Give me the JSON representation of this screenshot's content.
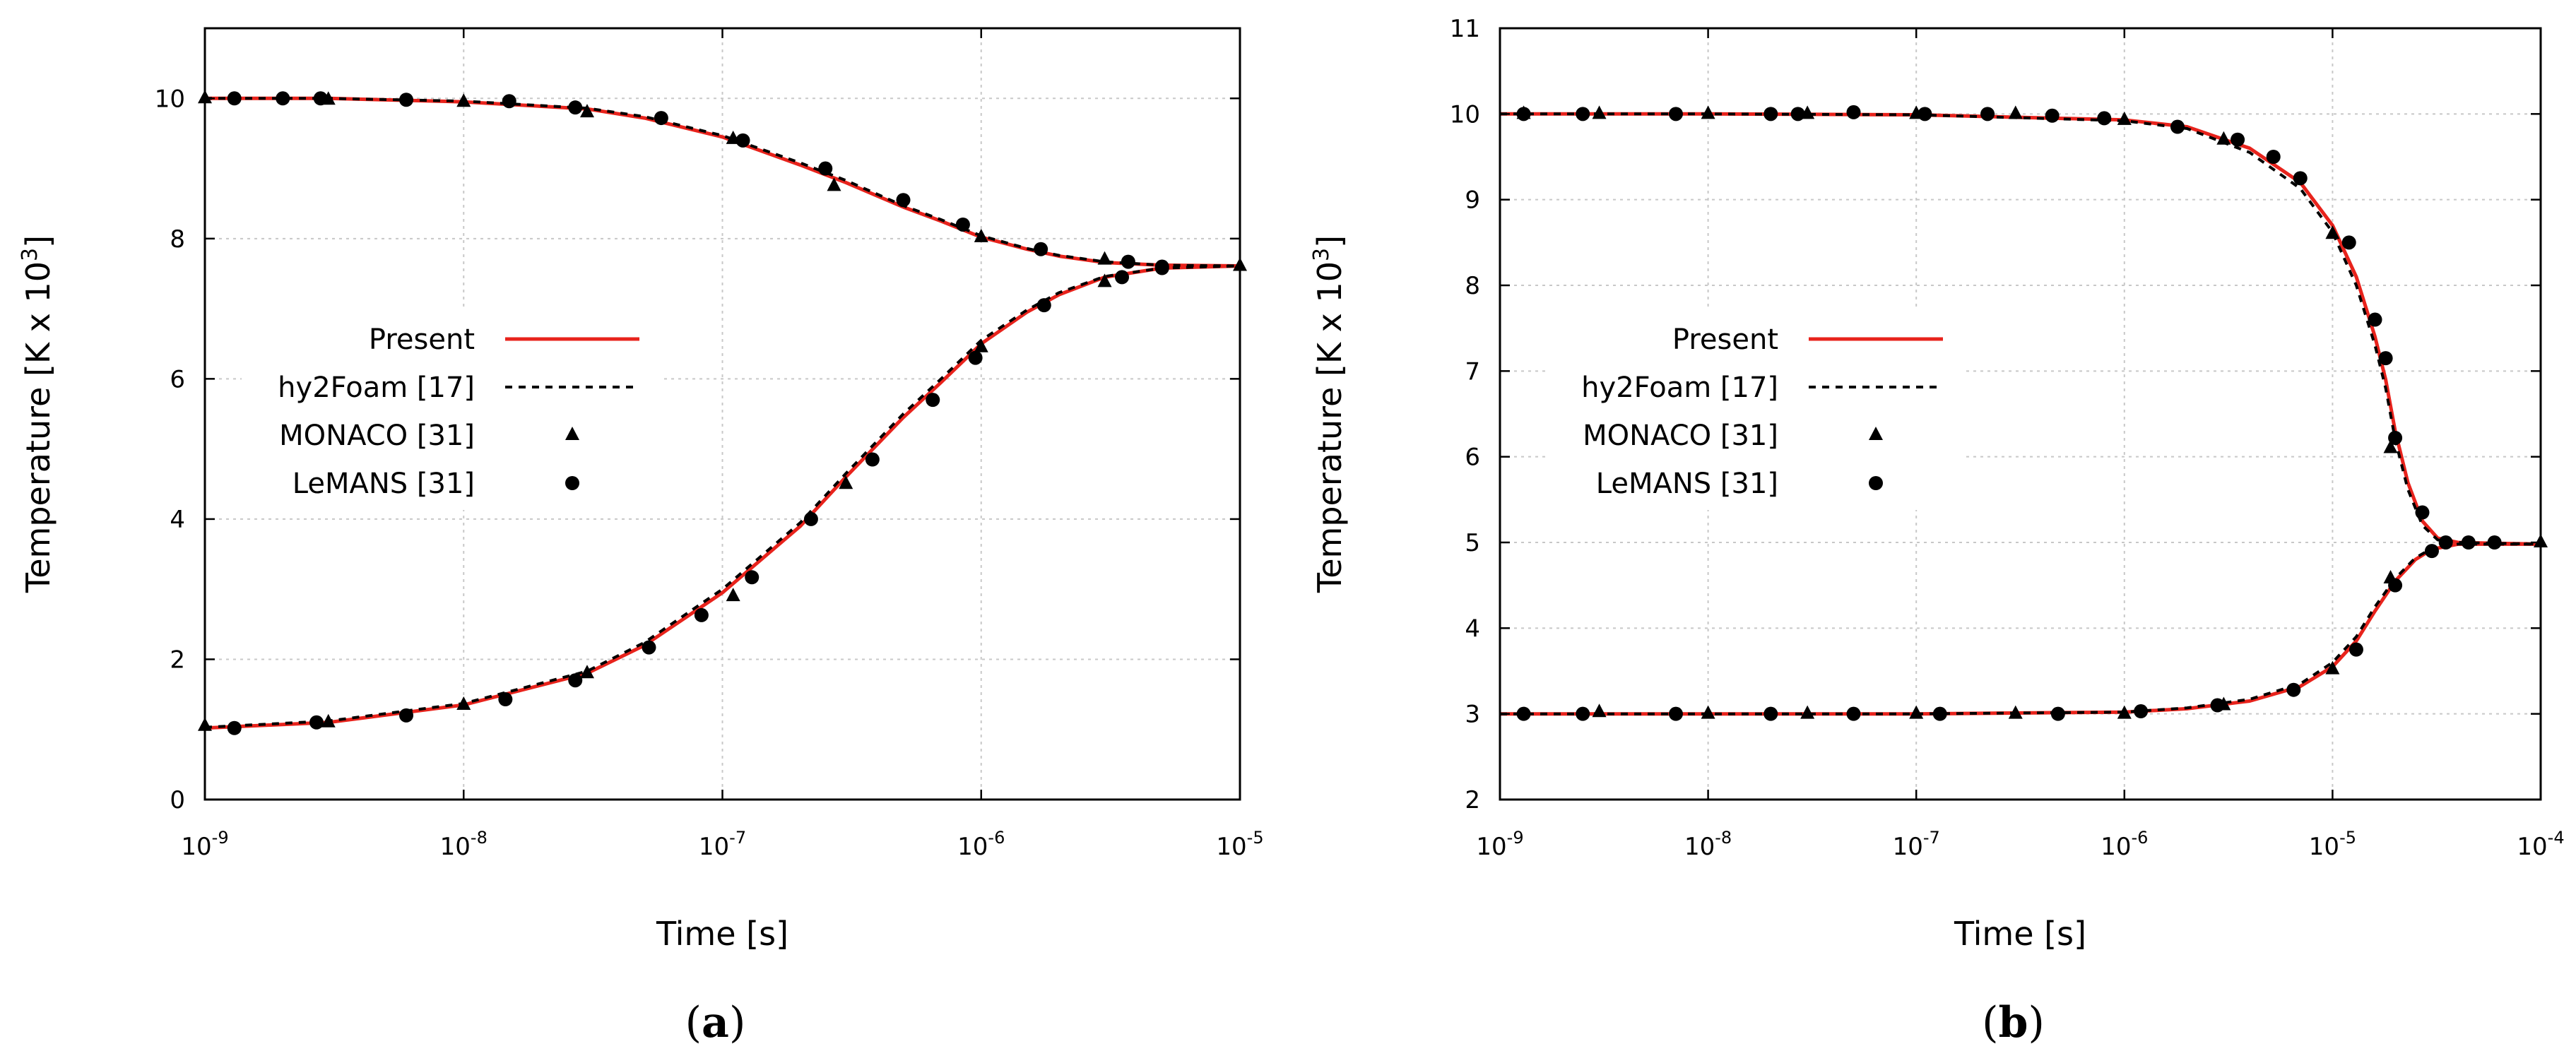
{
  "chart_data": [
    {
      "type": "line",
      "id": "a",
      "caption": "(a)",
      "xlabel": "Time [s]",
      "ylabel": "Temperature [K x 10",
      "ylabel_sup": "3",
      "ylabel_close": "]",
      "xscale": "log",
      "xlim": [
        1e-09,
        1e-05
      ],
      "ylim": [
        0,
        11
      ],
      "yticks": [
        0,
        2,
        4,
        6,
        8,
        10
      ],
      "xticks": [
        {
          "value": 1e-09,
          "base": "10",
          "exp": "-9"
        },
        {
          "value": 1e-08,
          "base": "10",
          "exp": "-8"
        },
        {
          "value": 1e-07,
          "base": "10",
          "exp": "-7"
        },
        {
          "value": 1e-06,
          "base": "10",
          "exp": "-6"
        },
        {
          "value": 1e-05,
          "base": "10",
          "exp": "-5"
        }
      ],
      "grid": true,
      "legend": [
        {
          "label": "Present",
          "style": "red-solid"
        },
        {
          "label": "hy2Foam [17]",
          "style": "black-dashed"
        },
        {
          "label": "MONACO [31]",
          "style": "triangle"
        },
        {
          "label": "LeMANS [31]",
          "style": "circle"
        }
      ],
      "legend_position": "left-center",
      "colors": {
        "present": "#e8231c",
        "hy2foam": "#000000",
        "markers": "#000000",
        "grid": "#c8c8c8"
      },
      "series": [
        {
          "name": "Present",
          "x": [
            1e-09,
            3e-09,
            1e-08,
            3e-08,
            5e-08,
            1e-07,
            2e-07,
            3e-07,
            5e-07,
            7e-07,
            1e-06,
            1.5e-06,
            2e-06,
            3e-06,
            5e-06,
            1e-05
          ],
          "values": [
            10.0,
            10.0,
            9.95,
            9.85,
            9.72,
            9.45,
            9.05,
            8.8,
            8.45,
            8.25,
            8.02,
            7.85,
            7.75,
            7.66,
            7.62,
            7.61
          ]
        },
        {
          "name": "Present",
          "x": [
            1e-09,
            3e-09,
            1e-08,
            3e-08,
            5e-08,
            1e-07,
            2e-07,
            3e-07,
            5e-07,
            7e-07,
            1e-06,
            1.5e-06,
            2e-06,
            3e-06,
            5e-06,
            1e-05
          ],
          "values": [
            1.02,
            1.1,
            1.35,
            1.8,
            2.2,
            2.95,
            3.9,
            4.6,
            5.45,
            5.95,
            6.5,
            6.95,
            7.2,
            7.45,
            7.58,
            7.61
          ]
        },
        {
          "name": "hy2Foam [17]",
          "x": [
            1e-09,
            3e-09,
            1e-08,
            3e-08,
            5e-08,
            1e-07,
            2e-07,
            3e-07,
            5e-07,
            7e-07,
            1e-06,
            1.5e-06,
            2e-06,
            3e-06,
            5e-06,
            1e-05
          ],
          "values": [
            10.0,
            10.0,
            9.96,
            9.86,
            9.74,
            9.47,
            9.08,
            8.83,
            8.47,
            8.27,
            8.04,
            7.86,
            7.76,
            7.67,
            7.62,
            7.61
          ]
        },
        {
          "name": "hy2Foam [17]",
          "x": [
            1e-09,
            3e-09,
            1e-08,
            3e-08,
            5e-08,
            1e-07,
            2e-07,
            3e-07,
            5e-07,
            7e-07,
            1e-06,
            1.5e-06,
            2e-06,
            3e-06,
            5e-06,
            1e-05
          ],
          "values": [
            1.03,
            1.12,
            1.37,
            1.83,
            2.24,
            3.0,
            3.95,
            4.65,
            5.5,
            6.0,
            6.55,
            6.98,
            7.23,
            7.46,
            7.58,
            7.61
          ]
        },
        {
          "name": "MONACO [31]",
          "x": [
            1e-09,
            3e-09,
            1e-08,
            3e-08,
            1.1e-07,
            2.7e-07,
            1e-06,
            3e-06,
            1e-05,
            1e-09,
            3e-09,
            1e-08,
            3e-08,
            1.1e-07,
            3e-07,
            1e-06,
            3e-06
          ],
          "values": [
            10.0,
            9.98,
            9.95,
            9.8,
            9.42,
            8.75,
            8.02,
            7.7,
            7.61,
            1.05,
            1.1,
            1.35,
            1.8,
            2.9,
            4.5,
            6.45,
            7.38
          ]
        },
        {
          "name": "LeMANS [31]",
          "x": [
            1.3e-09,
            2e-09,
            2.8e-09,
            6e-09,
            1.5e-08,
            2.7e-08,
            5.8e-08,
            1.2e-07,
            2.5e-07,
            5e-07,
            8.5e-07,
            1.7e-06,
            3.7e-06,
            5e-06,
            1.3e-09,
            2.7e-09,
            6e-09,
            1.45e-08,
            2.7e-08,
            5.2e-08,
            8.3e-08,
            1.3e-07,
            2.2e-07,
            3.8e-07,
            6.5e-07,
            9.5e-07,
            1.75e-06,
            3.5e-06,
            5e-06
          ],
          "values": [
            10.0,
            10.0,
            10.0,
            9.98,
            9.96,
            9.87,
            9.72,
            9.4,
            9.0,
            8.55,
            8.2,
            7.85,
            7.67,
            7.6,
            1.02,
            1.1,
            1.2,
            1.43,
            1.7,
            2.17,
            2.63,
            3.17,
            4.0,
            4.85,
            5.7,
            6.3,
            7.05,
            7.45,
            7.58
          ]
        }
      ]
    },
    {
      "type": "line",
      "id": "b",
      "caption": "(b)",
      "xlabel": "Time [s]",
      "ylabel": "Temperature [K x 10",
      "ylabel_sup": "3",
      "ylabel_close": "]",
      "xscale": "log",
      "xlim": [
        1e-09,
        0.0001
      ],
      "ylim": [
        2,
        11
      ],
      "yticks": [
        2,
        3,
        4,
        5,
        6,
        7,
        8,
        9,
        10,
        11
      ],
      "xticks": [
        {
          "value": 1e-09,
          "base": "10",
          "exp": "-9"
        },
        {
          "value": 1e-08,
          "base": "10",
          "exp": "-8"
        },
        {
          "value": 1e-07,
          "base": "10",
          "exp": "-7"
        },
        {
          "value": 1e-06,
          "base": "10",
          "exp": "-6"
        },
        {
          "value": 1e-05,
          "base": "10",
          "exp": "-5"
        },
        {
          "value": 0.0001,
          "base": "10",
          "exp": "-4"
        }
      ],
      "grid": true,
      "legend": [
        {
          "label": "Present",
          "style": "red-solid"
        },
        {
          "label": "hy2Foam [17]",
          "style": "black-dashed"
        },
        {
          "label": "MONACO [31]",
          "style": "triangle"
        },
        {
          "label": "LeMANS [31]",
          "style": "circle"
        }
      ],
      "legend_position": "center",
      "colors": {
        "present": "#e8231c",
        "hy2foam": "#000000",
        "markers": "#000000",
        "grid": "#c8c8c8"
      },
      "series": [
        {
          "name": "Present",
          "x": [
            1e-09,
            1e-08,
            1e-07,
            1e-06,
            2e-06,
            4e-06,
            7e-06,
            1e-05,
            1.3e-05,
            1.6e-05,
            1.8e-05,
            2e-05,
            2.3e-05,
            2.7e-05,
            3.2e-05,
            4e-05,
            6e-05,
            0.0001
          ],
          "values": [
            10.0,
            10.0,
            9.99,
            9.93,
            9.85,
            9.6,
            9.2,
            8.7,
            8.1,
            7.4,
            6.9,
            6.3,
            5.7,
            5.25,
            5.05,
            5.0,
            4.99,
            4.98
          ]
        },
        {
          "name": "Present",
          "x": [
            1e-09,
            1e-08,
            1e-07,
            1e-06,
            2e-06,
            4e-06,
            7e-06,
            1e-05,
            1.3e-05,
            1.6e-05,
            2e-05,
            2.5e-05,
            3e-05,
            4e-05,
            6e-05,
            0.0001
          ],
          "values": [
            3.0,
            3.0,
            3.0,
            3.02,
            3.06,
            3.15,
            3.32,
            3.55,
            3.85,
            4.2,
            4.55,
            4.8,
            4.92,
            4.98,
            4.98,
            4.98
          ]
        },
        {
          "name": "hy2Foam [17]",
          "x": [
            1e-09,
            1e-08,
            1e-07,
            1e-06,
            2e-06,
            4e-06,
            7e-06,
            1e-05,
            1.3e-05,
            1.6e-05,
            1.8e-05,
            2e-05,
            2.3e-05,
            2.7e-05,
            3.2e-05,
            4e-05,
            6e-05,
            0.0001
          ],
          "values": [
            10.0,
            10.0,
            9.99,
            9.92,
            9.83,
            9.55,
            9.13,
            8.62,
            8.0,
            7.3,
            6.8,
            6.2,
            5.62,
            5.2,
            5.03,
            5.0,
            4.99,
            4.98
          ]
        },
        {
          "name": "hy2Foam [17]",
          "x": [
            1e-09,
            1e-08,
            1e-07,
            1e-06,
            2e-06,
            4e-06,
            7e-06,
            1e-05,
            1.3e-05,
            1.6e-05,
            2e-05,
            2.5e-05,
            3e-05,
            4e-05,
            6e-05,
            0.0001
          ],
          "values": [
            3.0,
            3.0,
            3.0,
            3.02,
            3.07,
            3.17,
            3.35,
            3.6,
            3.9,
            4.25,
            4.58,
            4.82,
            4.93,
            4.98,
            4.98,
            4.98
          ]
        },
        {
          "name": "MONACO [31]",
          "x": [
            1.3e-09,
            3e-09,
            1e-08,
            3e-08,
            1e-07,
            3e-07,
            1e-06,
            3e-06,
            1e-05,
            1.9e-05,
            3e-09,
            1e-08,
            3e-08,
            1e-07,
            3e-07,
            1e-06,
            3e-06,
            1e-05,
            1.9e-05,
            0.0001
          ],
          "values": [
            10.0,
            10.0,
            10.0,
            10.0,
            10.0,
            10.0,
            9.93,
            9.7,
            8.6,
            6.1,
            3.02,
            3.0,
            3.0,
            3.0,
            3.0,
            3.0,
            3.1,
            3.52,
            4.58,
            5.0
          ]
        },
        {
          "name": "LeMANS [31]",
          "x": [
            1.3e-09,
            2.5e-09,
            7e-09,
            2e-08,
            2.7e-08,
            5e-08,
            1.1e-07,
            2.2e-07,
            4.5e-07,
            8e-07,
            1.8e-06,
            3.5e-06,
            5.2e-06,
            7e-06,
            1.2e-05,
            1.6e-05,
            1.8e-05,
            2e-05,
            2.7e-05,
            3.5e-05,
            4.5e-05,
            6e-05,
            1.3e-09,
            2.5e-09,
            7e-09,
            2e-08,
            5e-08,
            1.3e-07,
            4.8e-07,
            1.2e-06,
            2.8e-06,
            6.5e-06,
            1.3e-05,
            2e-05,
            3e-05
          ],
          "values": [
            10.0,
            10.0,
            10.0,
            10.0,
            10.0,
            10.02,
            10.0,
            10.0,
            9.98,
            9.95,
            9.85,
            9.7,
            9.5,
            9.25,
            8.5,
            7.6,
            7.15,
            6.22,
            5.35,
            5.0,
            5.0,
            5.0,
            3.0,
            3.0,
            3.0,
            3.0,
            3.0,
            3.0,
            3.0,
            3.03,
            3.1,
            3.28,
            3.75,
            4.5,
            4.9
          ]
        }
      ]
    }
  ]
}
